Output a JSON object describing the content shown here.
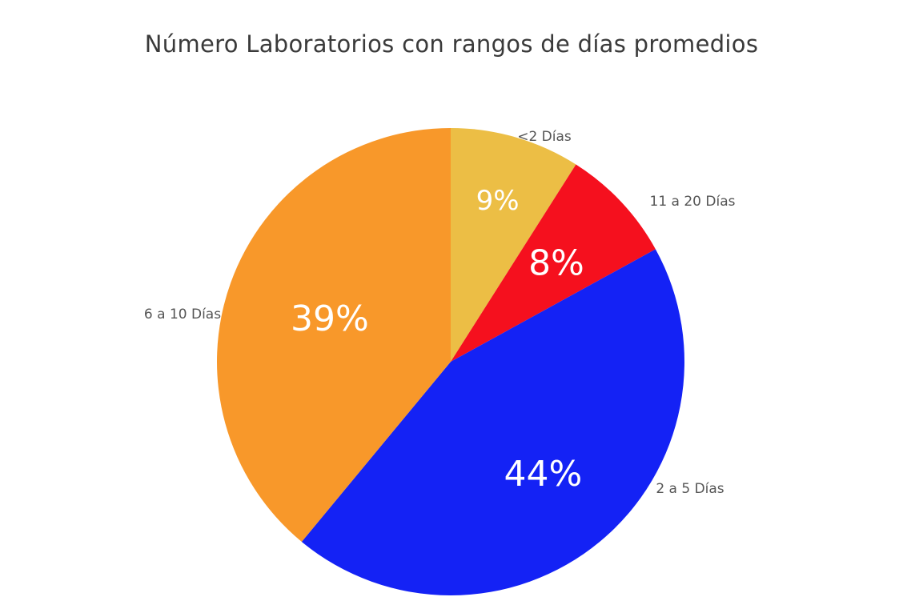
{
  "chart_data": {
    "type": "pie",
    "title": "Número Laboratorios con rangos de días promedios",
    "start_angle_deg": 0,
    "direction": "clockwise",
    "slices": [
      {
        "label": "<2 Días",
        "value": 9,
        "value_label": "9%",
        "color": "#ECBE45"
      },
      {
        "label": "11 a 20 Días",
        "value": 8,
        "value_label": "8%",
        "color": "#F5101E"
      },
      {
        "label": "2 a 5 Días",
        "value": 44,
        "value_label": "44%",
        "color": "#1422F5"
      },
      {
        "label": "6 a 10 Días",
        "value": 39,
        "value_label": "39%",
        "color": "#F8982A"
      }
    ]
  }
}
